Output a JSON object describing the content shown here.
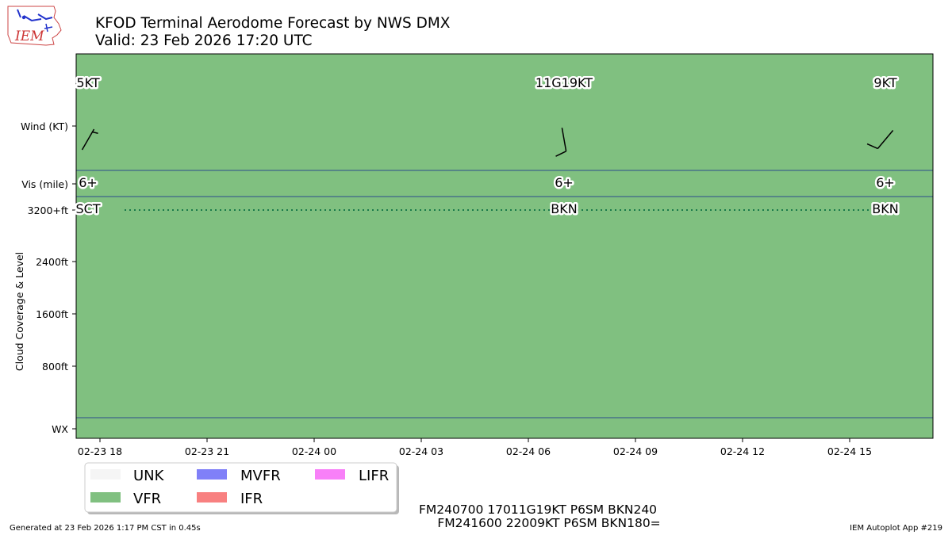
{
  "title": "KFOD Terminal Aerodome Forecast by NWS DMX",
  "subtitle": "Valid: 23 Feb 2026 17:20 UTC",
  "logo_text": "IEM",
  "footer_left": "Generated at 23 Feb 2026 1:17 PM CST in 0.45s",
  "footer_right": "IEM Autoplot App #219",
  "taf_lines": [
    "FM240700 17011G19KT P6SM BKN240",
    "FM241600 22009KT P6SM BKN180="
  ],
  "colors": {
    "UNK": "#f5f5f5",
    "VFR": "#80c080",
    "MVFR": "#8080f8",
    "IFR": "#f88080",
    "LIFR": "#f880f8",
    "separator": "#2c4d8c",
    "dotted": "#1a7a4a"
  },
  "chart_data": {
    "type": "timeline",
    "x_domain": [
      "2026-02-23 17:20",
      "2026-02-24 17:20"
    ],
    "x_ticks": [
      {
        "t": "2026-02-23 18:00",
        "label": "02-23 18"
      },
      {
        "t": "2026-02-23 21:00",
        "label": "02-23 21"
      },
      {
        "t": "2026-02-24 00:00",
        "label": "02-24 00"
      },
      {
        "t": "2026-02-24 03:00",
        "label": "02-24 03"
      },
      {
        "t": "2026-02-24 06:00",
        "label": "02-24 06"
      },
      {
        "t": "2026-02-24 09:00",
        "label": "02-24 09"
      },
      {
        "t": "2026-02-24 12:00",
        "label": "02-24 12"
      },
      {
        "t": "2026-02-24 15:00",
        "label": "02-24 15"
      }
    ],
    "rows": [
      "Wind (KT)",
      "Vis (mile)",
      "3200+ft",
      "2400ft",
      "1600ft",
      "800ft",
      "WX"
    ],
    "y_axis_label": "Cloud Coverage & Level",
    "background_category": "VFR",
    "forecasts": [
      {
        "time": "2026-02-23 17:40",
        "wind_label": "5KT",
        "wind_dir": null,
        "wind_speed": 5,
        "vis_label": "6+",
        "cloud_label": "SCT",
        "cloud_level_ft": 3200
      },
      {
        "time": "2026-02-24 07:00",
        "wind_label": "11G19KT",
        "wind_dir": 170,
        "wind_speed": 11,
        "vis_label": "6+",
        "cloud_label": "BKN",
        "cloud_level_ft": 3200
      },
      {
        "time": "2026-02-24 16:00",
        "wind_label": "9KT",
        "wind_dir": 220,
        "wind_speed": 9,
        "vis_label": "6+",
        "cloud_label": "BKN",
        "cloud_level_ft": 3200
      }
    ],
    "legend": [
      {
        "label": "UNK",
        "color": "#f5f5f5"
      },
      {
        "label": "MVFR",
        "color": "#8080f8"
      },
      {
        "label": "LIFR",
        "color": "#f880f8"
      },
      {
        "label": "VFR",
        "color": "#80c080"
      },
      {
        "label": "IFR",
        "color": "#f88080"
      }
    ]
  }
}
